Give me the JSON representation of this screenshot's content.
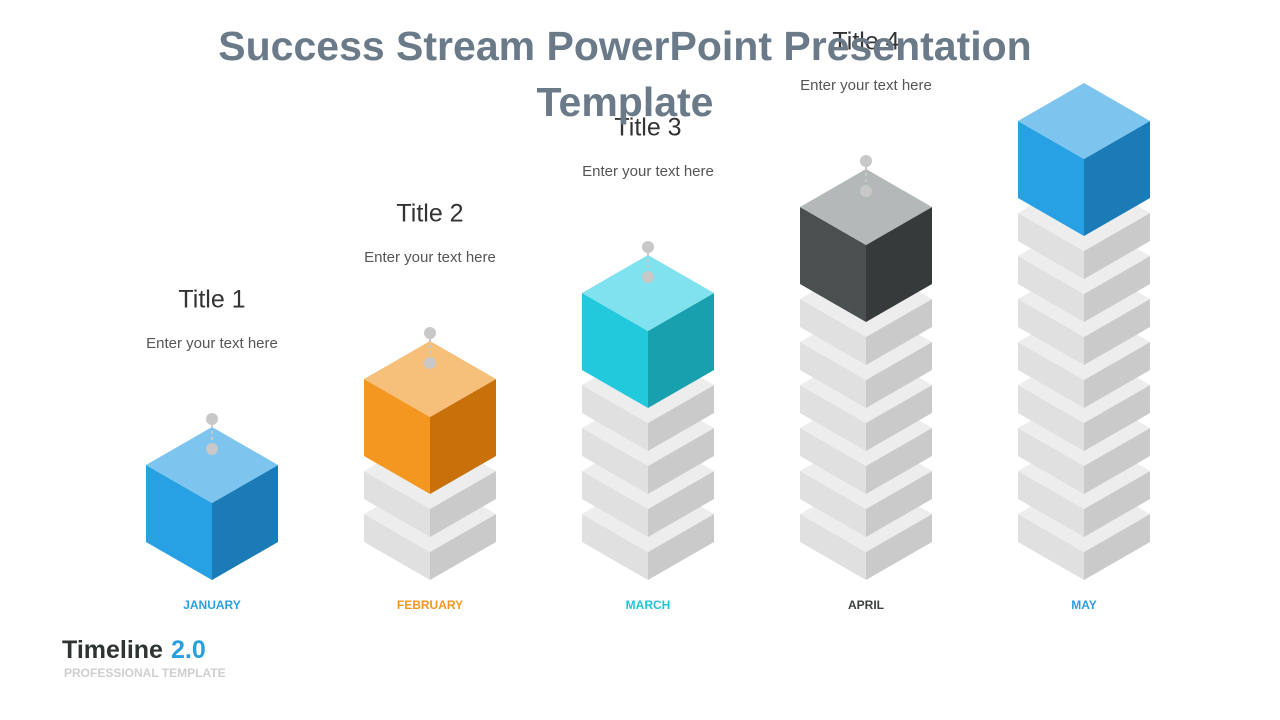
{
  "header": {
    "title": "Success Stream PowerPoint Presentation Template"
  },
  "steps": [
    {
      "title": "Title 1",
      "text": "Enter your text here",
      "month": "JANUARY"
    },
    {
      "title": "Title 2",
      "text": "Enter your text here",
      "month": "FEBRUARY"
    },
    {
      "title": "Title 3",
      "text": "Enter your text here",
      "month": "MARCH"
    },
    {
      "title": "Title 4",
      "text": "Enter your text here",
      "month": "APRIL"
    },
    {
      "month": "MAY"
    }
  ],
  "footer": {
    "name": "Timeline",
    "version": "2.0",
    "tagline": "PROFESSIONAL TEMPLATE"
  }
}
